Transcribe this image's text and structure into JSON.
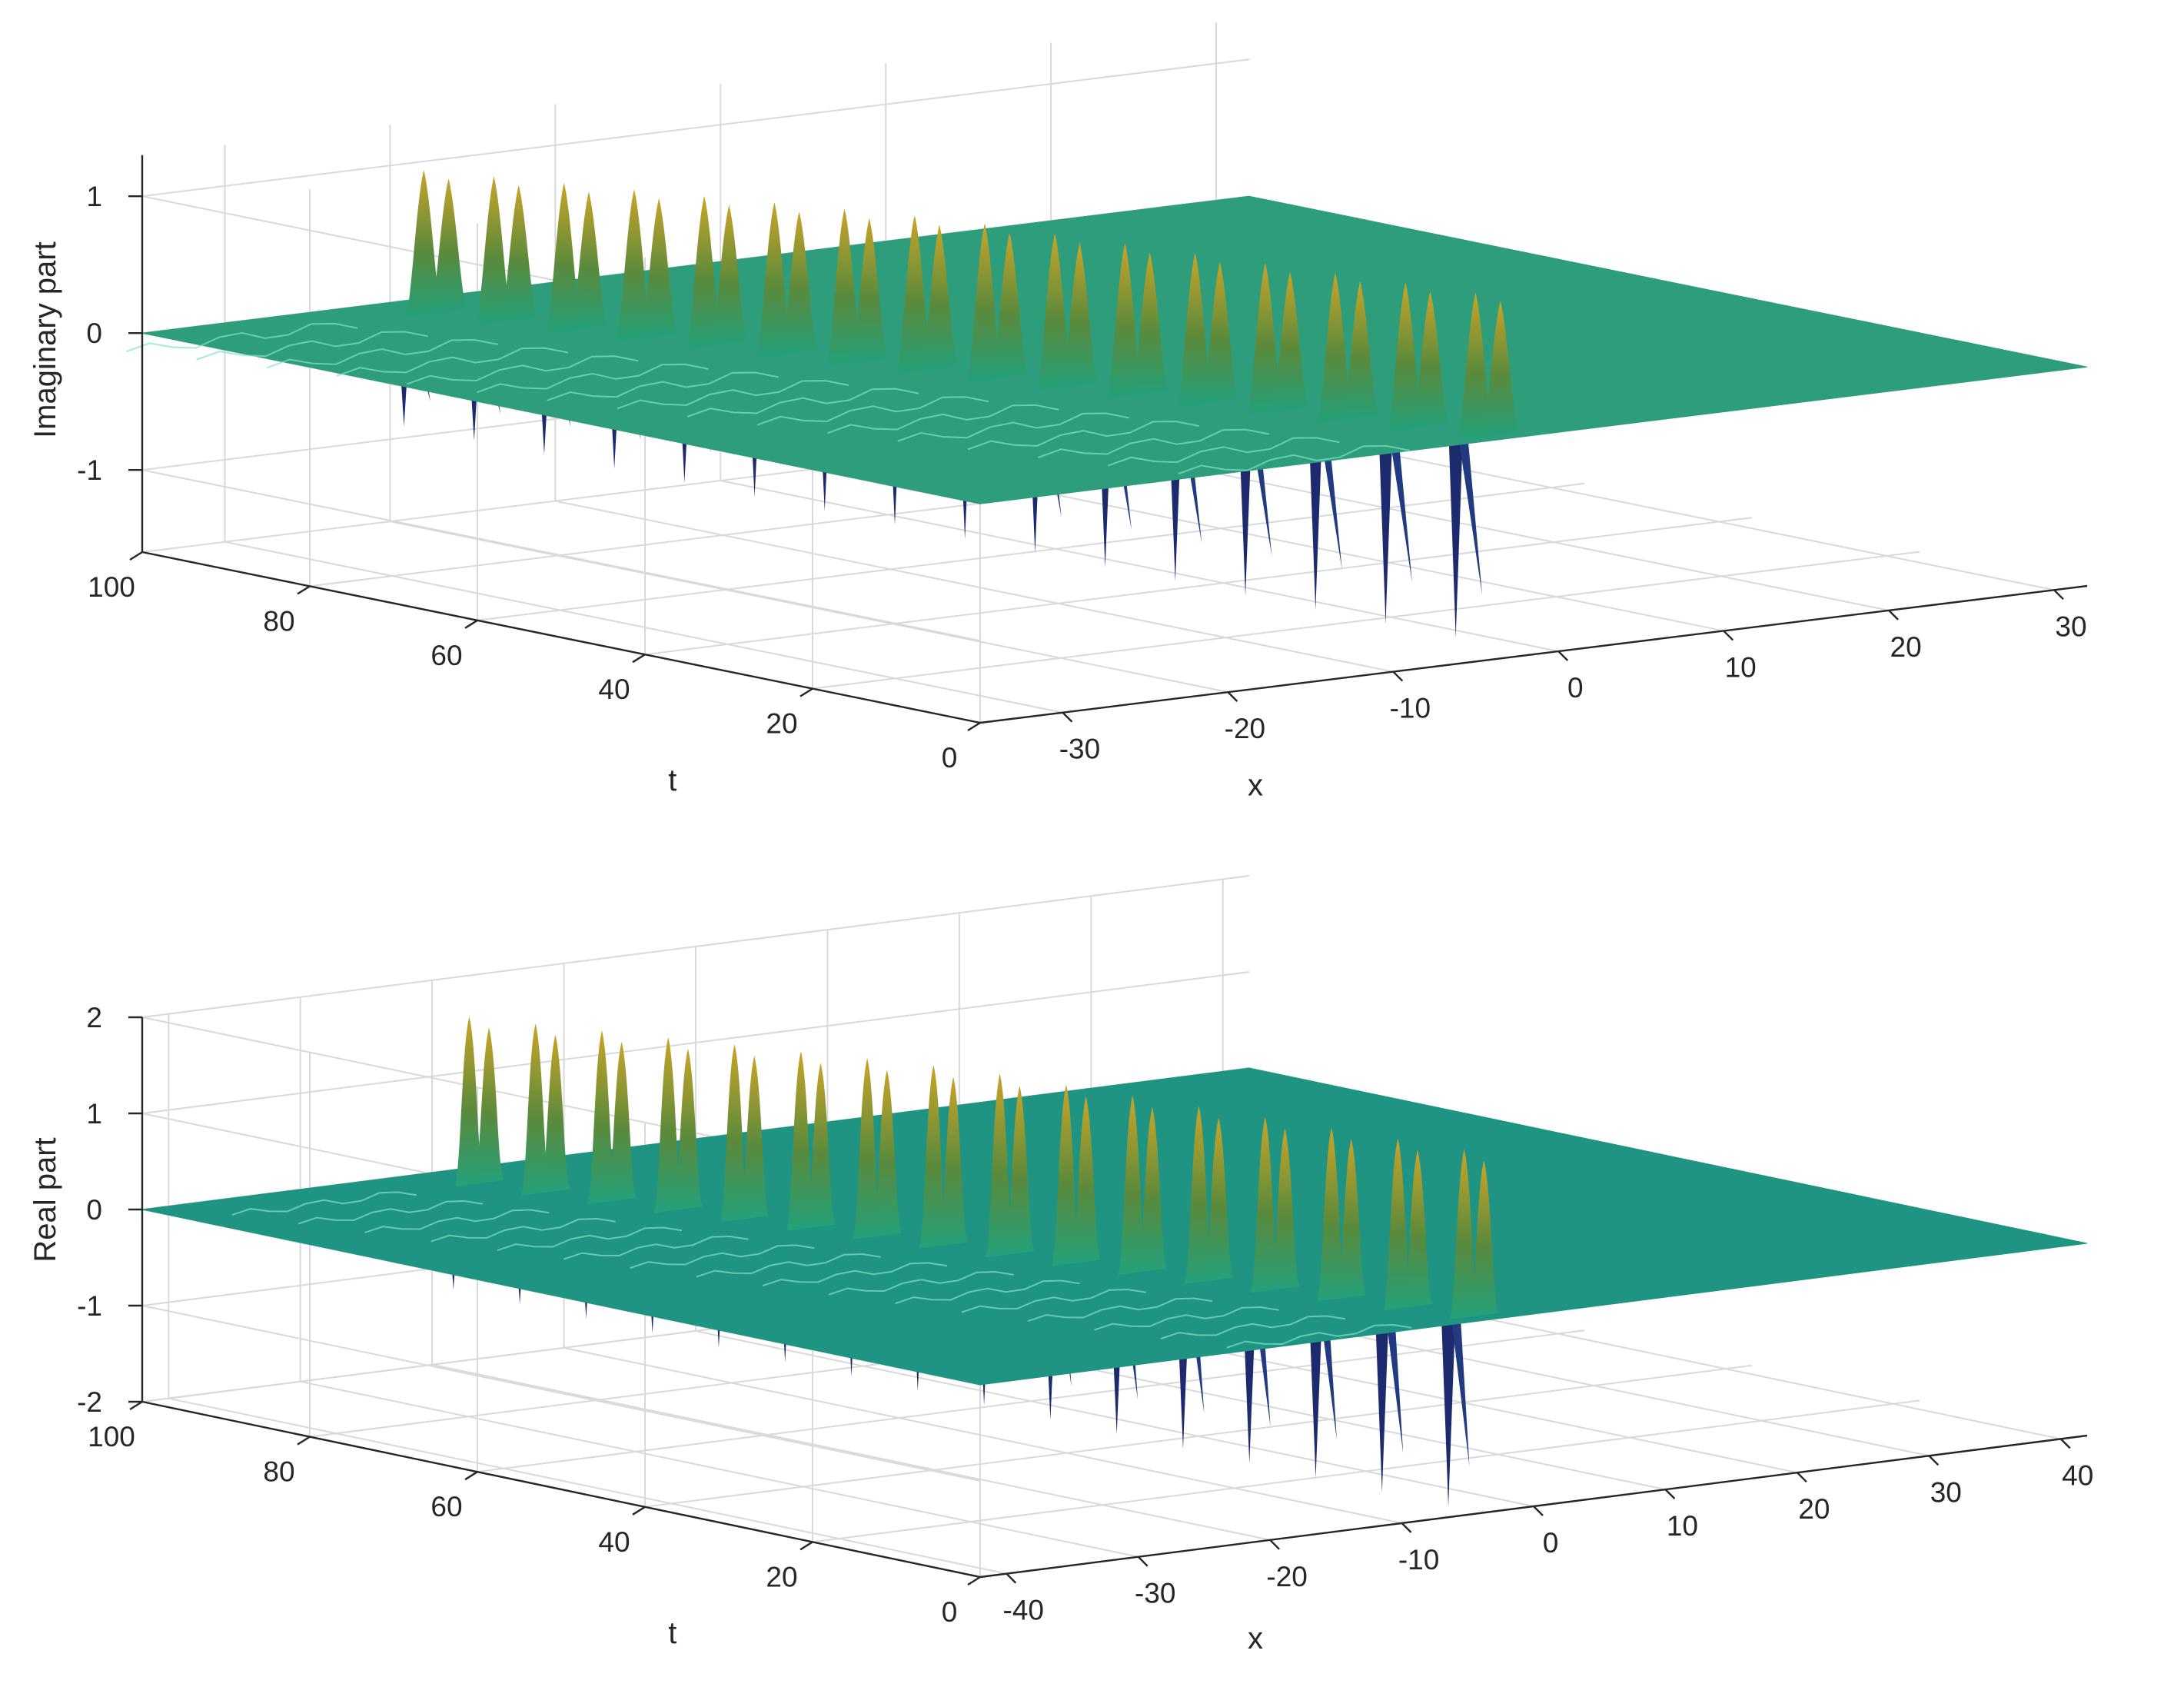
{
  "chart_data": [
    {
      "type": "surface",
      "zlabel": "Imaginary part",
      "xlabel": "x",
      "ylabel": "t",
      "x_ticks": [
        -30,
        -20,
        -10,
        0,
        10,
        20,
        30
      ],
      "t_ticks": [
        0,
        20,
        40,
        60,
        80,
        100
      ],
      "z_ticks": [
        -1,
        0,
        1
      ],
      "xlim": [
        -35,
        32
      ],
      "tlim": [
        0,
        100
      ],
      "zlim": [
        -1.6,
        1.3
      ],
      "grid": true,
      "colormap": "parula",
      "baseline_color": "#2e9d7b",
      "ridges": {
        "count": 16,
        "t_start": 2,
        "t_end": 94,
        "x_start": -4,
        "x_end": -21,
        "pos_amplitude": 1.15,
        "neg_amplitude": -1.45
      }
    },
    {
      "type": "surface",
      "zlabel": "Real part",
      "xlabel": "x",
      "ylabel": "t",
      "x_ticks": [
        -40,
        -30,
        -20,
        -10,
        0,
        10,
        20,
        30,
        40
      ],
      "t_ticks": [
        0,
        20,
        40,
        60,
        80,
        100
      ],
      "z_ticks": [
        -2,
        -1,
        0,
        1,
        2
      ],
      "xlim": [
        -42,
        42
      ],
      "tlim": [
        0,
        100
      ],
      "zlim": [
        -2,
        2
      ],
      "grid": true,
      "colormap": "parula",
      "baseline_color": "#1f9483",
      "ridges": {
        "count": 16,
        "t_start": 2,
        "t_end": 94,
        "x_start": -4,
        "x_end": -21,
        "pos_amplitude": 1.9,
        "neg_amplitude": -1.95
      }
    }
  ]
}
